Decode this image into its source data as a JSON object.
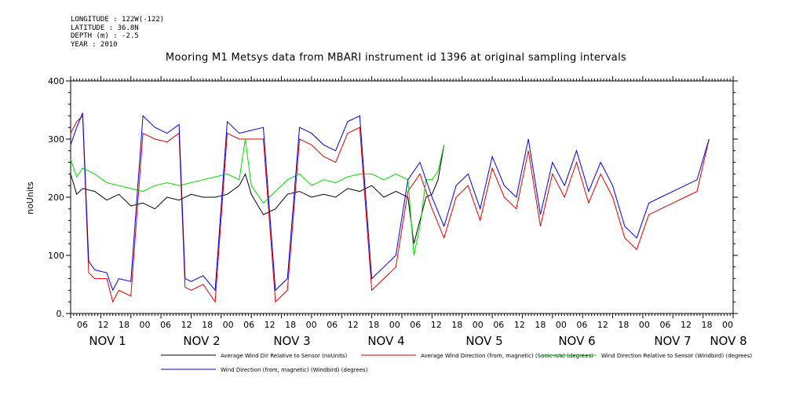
{
  "meta": {
    "longitude": "LONGITUDE : 122W(-122)",
    "latitude": "LATITUDE : 36.8N",
    "depth": "DEPTH (m) : -2.5",
    "year": "YEAR : 2010"
  },
  "chart_data": {
    "type": "line",
    "title": "Mooring M1 Metsys data from MBARI instrument id 1396 at original sampling intervals",
    "ylabel": "noUnits",
    "xlabel": "",
    "ylim": [
      0,
      400
    ],
    "yticks": [
      0,
      100,
      200,
      300,
      400
    ],
    "x_tick_labels": [
      "06",
      "12",
      "18",
      "00",
      "06",
      "12",
      "18",
      "00",
      "06",
      "12",
      "18",
      "00",
      "06",
      "12",
      "18",
      "00",
      "06",
      "12",
      "18",
      "00",
      "06",
      "12",
      "18",
      "00",
      "06",
      "12",
      "18",
      "00",
      "06",
      "12",
      "18",
      "00"
    ],
    "day_labels": [
      "NOV  1",
      "NOV  2",
      "NOV  3",
      "NOV  4",
      "NOV  5",
      "NOV  6",
      "NOV  7",
      "NOV  8"
    ],
    "x_hour_range": [
      2,
      64
    ],
    "grid": false,
    "colors": {
      "black": "#000000",
      "red": "#e00000",
      "green": "#00dd00",
      "blue": "#0000ee"
    },
    "series": [
      {
        "name": "Average Wind Dir Relative to Sensor (noUnits)",
        "color": "#000000",
        "points": [
          [
            2,
            240
          ],
          [
            3,
            205
          ],
          [
            4,
            215
          ],
          [
            6,
            210
          ],
          [
            8,
            195
          ],
          [
            10,
            205
          ],
          [
            12,
            185
          ],
          [
            14,
            190
          ],
          [
            16,
            180
          ],
          [
            18,
            200
          ],
          [
            20,
            195
          ],
          [
            22,
            205
          ],
          [
            24,
            200
          ],
          [
            26,
            200
          ],
          [
            28,
            205
          ],
          [
            30,
            220
          ],
          [
            31,
            240
          ],
          [
            32,
            205
          ],
          [
            34,
            170
          ],
          [
            36,
            180
          ],
          [
            38,
            205
          ],
          [
            40,
            210
          ],
          [
            42,
            200
          ],
          [
            44,
            205
          ],
          [
            46,
            200
          ],
          [
            48,
            215
          ],
          [
            50,
            210
          ],
          [
            52,
            220
          ],
          [
            54,
            200
          ],
          [
            56,
            210
          ],
          [
            58,
            200
          ],
          [
            59,
            120
          ],
          [
            60,
            160
          ],
          [
            61,
            200
          ],
          [
            62,
            205
          ],
          [
            63,
            230
          ],
          [
            64,
            290
          ]
        ]
      },
      {
        "name": "Average Wind Direction (from, magnetic) (Sonic-n/a) (degrees)",
        "color": "#e00000",
        "points": [
          [
            2,
            310
          ],
          [
            3,
            330
          ],
          [
            4,
            340
          ],
          [
            5,
            70
          ],
          [
            6,
            60
          ],
          [
            8,
            60
          ],
          [
            9,
            20
          ],
          [
            10,
            40
          ],
          [
            12,
            30
          ],
          [
            14,
            310
          ],
          [
            16,
            300
          ],
          [
            18,
            295
          ],
          [
            20,
            310
          ],
          [
            21,
            45
          ],
          [
            22,
            40
          ],
          [
            24,
            50
          ],
          [
            26,
            20
          ],
          [
            28,
            310
          ],
          [
            30,
            300
          ],
          [
            32,
            300
          ],
          [
            34,
            300
          ],
          [
            36,
            20
          ],
          [
            38,
            40
          ],
          [
            40,
            300
          ],
          [
            42,
            290
          ],
          [
            44,
            270
          ],
          [
            46,
            260
          ],
          [
            48,
            310
          ],
          [
            50,
            320
          ],
          [
            52,
            40
          ],
          [
            54,
            60
          ],
          [
            56,
            80
          ],
          [
            58,
            210
          ],
          [
            60,
            240
          ],
          [
            62,
            180
          ],
          [
            64,
            130
          ],
          [
            66,
            200
          ],
          [
            68,
            220
          ],
          [
            70,
            160
          ],
          [
            72,
            250
          ],
          [
            74,
            200
          ],
          [
            76,
            180
          ],
          [
            78,
            280
          ],
          [
            80,
            150
          ],
          [
            82,
            240
          ],
          [
            84,
            200
          ],
          [
            86,
            260
          ],
          [
            88,
            190
          ],
          [
            90,
            240
          ],
          [
            92,
            200
          ],
          [
            94,
            130
          ],
          [
            96,
            110
          ],
          [
            98,
            170
          ],
          [
            100,
            180
          ],
          [
            102,
            190
          ],
          [
            104,
            200
          ],
          [
            106,
            210
          ],
          [
            108,
            300
          ]
        ]
      },
      {
        "name": "Wind Direction Relative to Sensor (Windbird) (degrees)",
        "color": "#00dd00",
        "points": [
          [
            2,
            265
          ],
          [
            3,
            235
          ],
          [
            4,
            250
          ],
          [
            6,
            240
          ],
          [
            8,
            225
          ],
          [
            10,
            220
          ],
          [
            12,
            215
          ],
          [
            14,
            210
          ],
          [
            16,
            220
          ],
          [
            18,
            225
          ],
          [
            20,
            220
          ],
          [
            22,
            225
          ],
          [
            24,
            230
          ],
          [
            26,
            235
          ],
          [
            28,
            240
          ],
          [
            30,
            230
          ],
          [
            31,
            300
          ],
          [
            32,
            220
          ],
          [
            34,
            190
          ],
          [
            36,
            210
          ],
          [
            38,
            230
          ],
          [
            40,
            240
          ],
          [
            42,
            220
          ],
          [
            44,
            230
          ],
          [
            46,
            225
          ],
          [
            48,
            235
          ],
          [
            50,
            240
          ],
          [
            52,
            240
          ],
          [
            54,
            230
          ],
          [
            56,
            240
          ],
          [
            58,
            230
          ],
          [
            59,
            100
          ],
          [
            60,
            150
          ],
          [
            61,
            230
          ],
          [
            62,
            230
          ],
          [
            63,
            245
          ],
          [
            64,
            290
          ]
        ]
      },
      {
        "name": "Wind Direction (from, magnetic) (Windbird) (degrees)",
        "color": "#0000ee",
        "points": [
          [
            2,
            290
          ],
          [
            3,
            320
          ],
          [
            4,
            345
          ],
          [
            5,
            90
          ],
          [
            6,
            75
          ],
          [
            8,
            70
          ],
          [
            9,
            40
          ],
          [
            10,
            60
          ],
          [
            12,
            55
          ],
          [
            14,
            340
          ],
          [
            16,
            320
          ],
          [
            18,
            310
          ],
          [
            20,
            325
          ],
          [
            21,
            60
          ],
          [
            22,
            55
          ],
          [
            24,
            65
          ],
          [
            26,
            40
          ],
          [
            28,
            330
          ],
          [
            30,
            310
          ],
          [
            32,
            315
          ],
          [
            34,
            320
          ],
          [
            36,
            40
          ],
          [
            38,
            60
          ],
          [
            40,
            320
          ],
          [
            42,
            310
          ],
          [
            44,
            290
          ],
          [
            46,
            280
          ],
          [
            48,
            330
          ],
          [
            50,
            340
          ],
          [
            52,
            60
          ],
          [
            54,
            80
          ],
          [
            56,
            100
          ],
          [
            58,
            230
          ],
          [
            60,
            260
          ],
          [
            62,
            200
          ],
          [
            64,
            150
          ],
          [
            66,
            220
          ],
          [
            68,
            240
          ],
          [
            70,
            180
          ],
          [
            72,
            270
          ],
          [
            74,
            220
          ],
          [
            76,
            200
          ],
          [
            78,
            300
          ],
          [
            80,
            170
          ],
          [
            82,
            260
          ],
          [
            84,
            220
          ],
          [
            86,
            280
          ],
          [
            88,
            210
          ],
          [
            90,
            260
          ],
          [
            92,
            220
          ],
          [
            94,
            150
          ],
          [
            96,
            130
          ],
          [
            98,
            190
          ],
          [
            100,
            200
          ],
          [
            102,
            210
          ],
          [
            104,
            220
          ],
          [
            106,
            230
          ],
          [
            108,
            300
          ]
        ]
      }
    ]
  }
}
